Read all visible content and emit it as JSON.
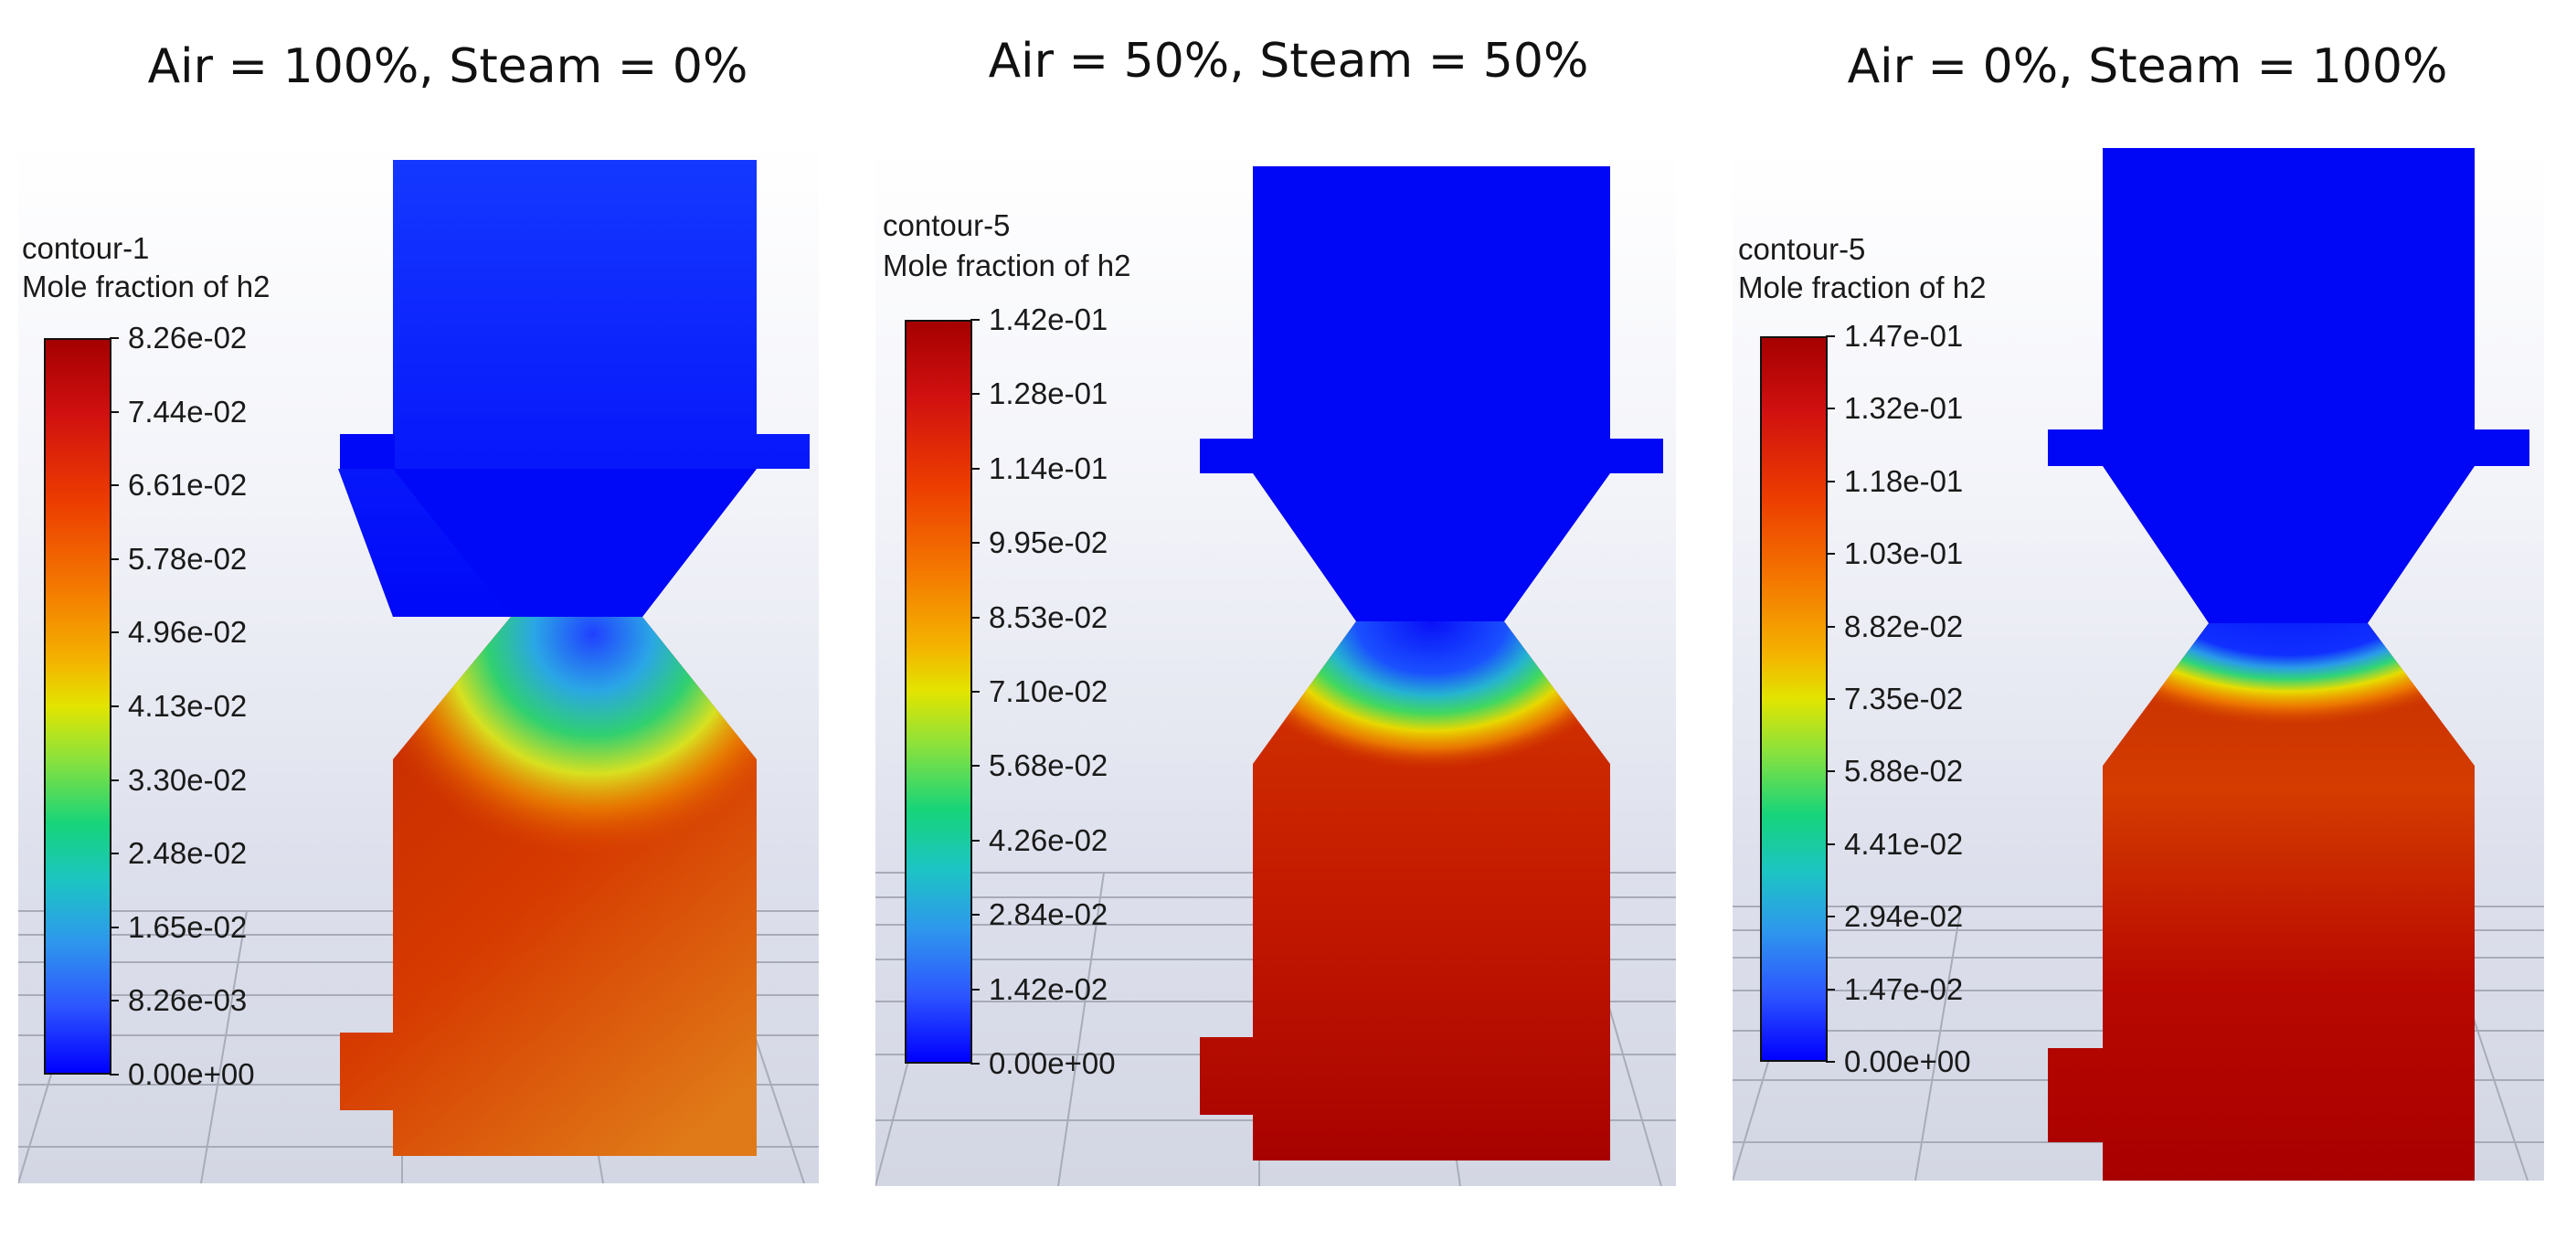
{
  "panels": [
    {
      "title": "Air = 100%, Steam = 0%",
      "contour_name": "contour-1",
      "variable": "Mole fraction of h2",
      "ticks": [
        "8.26e-02",
        "7.44e-02",
        "6.61e-02",
        "5.78e-02",
        "4.96e-02",
        "4.13e-02",
        "3.30e-02",
        "2.48e-02",
        "1.65e-02",
        "8.26e-03",
        "0.00e+00"
      ]
    },
    {
      "title": "Air = 50%, Steam = 50%",
      "contour_name": "contour-5",
      "variable": "Mole fraction of h2",
      "ticks": [
        "1.42e-01",
        "1.28e-01",
        "1.14e-01",
        "9.95e-02",
        "8.53e-02",
        "7.10e-02",
        "5.68e-02",
        "4.26e-02",
        "2.84e-02",
        "1.42e-02",
        "0.00e+00"
      ]
    },
    {
      "title": "Air = 0%, Steam = 100%",
      "contour_name": "contour-5",
      "variable": "Mole fraction of h2",
      "ticks": [
        "1.47e-01",
        "1.32e-01",
        "1.18e-01",
        "1.03e-01",
        "8.82e-02",
        "7.35e-02",
        "5.88e-02",
        "4.41e-02",
        "2.94e-02",
        "1.47e-02",
        "0.00e+00"
      ]
    }
  ],
  "colors": {
    "low": "#0000ff",
    "high": "#a50000"
  }
}
